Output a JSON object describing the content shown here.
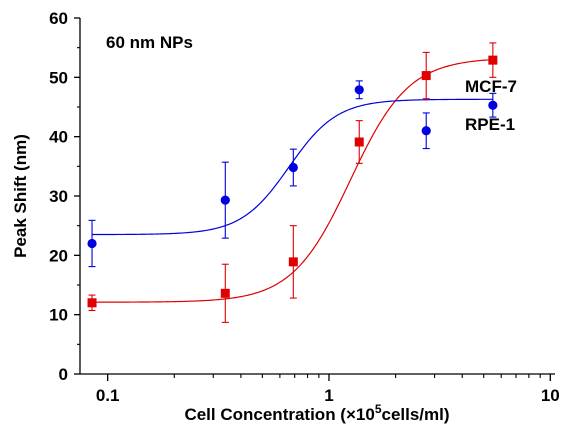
{
  "chart_data": {
    "type": "scatter",
    "annotation": "60 nm NPs",
    "xlabel": "Cell Concentration",
    "xlabel_parts": {
      "prefix": "Cell Concentration (×10",
      "superscript": "5",
      "suffix": "cells/ml)"
    },
    "ylabel": "Peak Shift (nm)",
    "x_scale": "log",
    "xlim": [
      0.075,
      10.5
    ],
    "ylim": [
      0,
      60
    ],
    "x_ticks": [
      0.1,
      1,
      10
    ],
    "x_tick_labels": [
      "0.1",
      "1",
      "10"
    ],
    "y_ticks": [
      0,
      10,
      20,
      30,
      40,
      50,
      60
    ],
    "y_tick_labels": [
      "0",
      "10",
      "20",
      "30",
      "40",
      "50",
      "60"
    ],
    "grid": false,
    "series": [
      {
        "name": "MCF-7",
        "color": "#e00000",
        "marker": "square",
        "x": [
          0.085,
          0.34,
          0.69,
          1.37,
          2.75,
          5.5
        ],
        "y": [
          12.0,
          13.6,
          18.9,
          39.1,
          50.3,
          52.9
        ],
        "err": [
          1.3,
          4.9,
          6.1,
          3.6,
          3.9,
          2.9
        ],
        "fit": {
          "bottom": 12.1,
          "top": 53.3,
          "x0": 1.25,
          "n": 3.3
        }
      },
      {
        "name": "RPE-1",
        "color": "#0000e0",
        "marker": "circle",
        "x": [
          0.085,
          0.34,
          0.69,
          1.37,
          2.75,
          5.5
        ],
        "y": [
          22.0,
          29.3,
          34.8,
          47.9,
          41.0,
          45.3
        ],
        "err": [
          3.9,
          6.4,
          3.1,
          1.5,
          3.0,
          2.0
        ],
        "fit": {
          "bottom": 23.5,
          "top": 46.3,
          "x0": 0.66,
          "n": 4.0
        }
      }
    ]
  }
}
